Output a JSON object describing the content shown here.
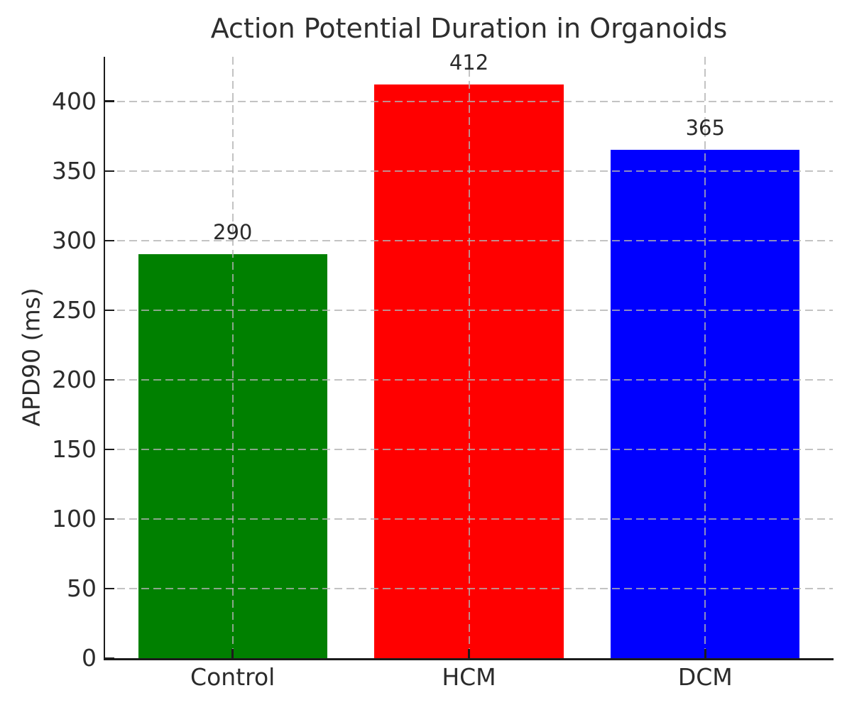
{
  "chart_data": {
    "type": "bar",
    "title": "Action Potential Duration in Organoids",
    "xlabel": "",
    "ylabel": "APD90 (ms)",
    "categories": [
      "Control",
      "HCM",
      "DCM"
    ],
    "values": [
      290,
      412,
      365
    ],
    "data_labels": [
      "290",
      "412",
      "365"
    ],
    "bar_colors": [
      "#008000",
      "#ff0000",
      "#0000ff"
    ],
    "bar_width_fraction": 0.8,
    "ytick_labels": [
      "0",
      "50",
      "100",
      "150",
      "200",
      "250",
      "300",
      "350",
      "400"
    ],
    "ytick_values": [
      0,
      50,
      100,
      150,
      200,
      250,
      300,
      350,
      400
    ],
    "ylim": [
      0,
      432
    ],
    "grid": {
      "style": "dashed",
      "color": "#b2b2b2",
      "alpha": 0.78,
      "axisbelow": false
    },
    "legend": null,
    "colors": {
      "text": "#2b2b2b",
      "spine": "#1c1c1c",
      "background": "#ffffff"
    }
  }
}
